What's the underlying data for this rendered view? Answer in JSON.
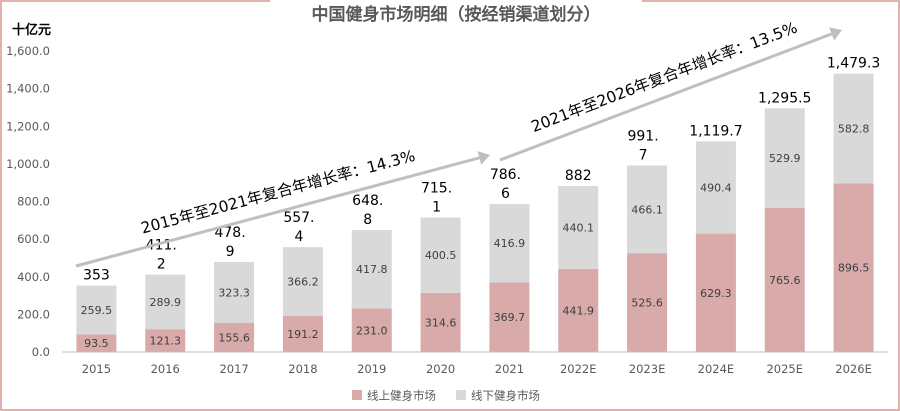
{
  "chart_data": {
    "type": "bar",
    "stacked": true,
    "title": "中国健身市场明细（按经销渠道划分）",
    "ylabel": "十亿元",
    "xlabel": "",
    "ylim": [
      0,
      1600
    ],
    "yticks": [
      "0.0",
      "200.0",
      "400.0",
      "600.0",
      "800.0",
      "1,000.0",
      "1,200.0",
      "1,400.0",
      "1,600.0"
    ],
    "categories": [
      "2015",
      "2016",
      "2017",
      "2018",
      "2019",
      "2020",
      "2021",
      "2022E",
      "2023E",
      "2024E",
      "2025E",
      "2026E"
    ],
    "series": [
      {
        "name": "线上健身市场",
        "color": "#d8aaa9",
        "values": [
          93.5,
          121.3,
          155.6,
          191.2,
          231.0,
          314.6,
          369.7,
          441.9,
          525.6,
          629.3,
          765.6,
          896.5
        ],
        "labels": [
          "93.5",
          "121.3",
          "155.6",
          "191.2",
          "231.0",
          "314.6",
          "369.7",
          "441.9",
          "525.6",
          "629.3",
          "765.6",
          "896.5"
        ]
      },
      {
        "name": "线下健身市场",
        "color": "#d9d9d9",
        "values": [
          259.5,
          289.9,
          323.3,
          366.2,
          417.8,
          400.5,
          416.9,
          440.1,
          466.1,
          490.4,
          529.9,
          582.8
        ],
        "labels": [
          "259.5",
          "289.9",
          "323.3",
          "366.2",
          "417.8",
          "400.5",
          "416.9",
          "440.1",
          "466.1",
          "490.4",
          "529.9",
          "582.8"
        ]
      }
    ],
    "totals": [
      353,
      411.2,
      478.9,
      557.4,
      648.8,
      715.1,
      786.6,
      882,
      991.7,
      1119.7,
      1295.5,
      1479.3
    ],
    "total_labels": [
      [
        "353"
      ],
      [
        "411.",
        "2"
      ],
      [
        "478.",
        "9"
      ],
      [
        "557.",
        "4"
      ],
      [
        "648.",
        "8"
      ],
      [
        "715.",
        "1"
      ],
      [
        "786.",
        "6"
      ],
      [
        "882"
      ],
      [
        "991.",
        "7"
      ],
      [
        "1,119.7"
      ],
      [
        "1,295.5"
      ],
      [
        "1,479.3"
      ]
    ],
    "annotations": [
      {
        "text": "2015年至2021年复合年增长率：14.3%",
        "from_category": "2015",
        "to_category": "2021"
      },
      {
        "text": "2021年至2026年复合年增长率：13.5%",
        "from_category": "2021",
        "to_category": "2026E"
      }
    ],
    "legend_position": "bottom-center",
    "grid": false
  },
  "colors": {
    "title": "#595959",
    "frame": "#d99894",
    "axis": "#bfbfbf",
    "tick_text": "#595959",
    "value_text": "#404040",
    "total_text": "#000000",
    "arrow": "#bfbfbf"
  }
}
